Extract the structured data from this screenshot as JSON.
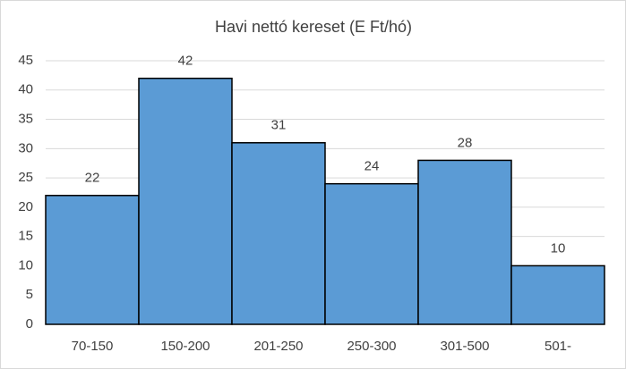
{
  "chart_data": {
    "type": "bar",
    "title": "Havi nettó kereset (E Ft/hó)",
    "categories": [
      "70-150",
      "150-200",
      "201-250",
      "250-300",
      "301-500",
      "501-"
    ],
    "values": [
      22,
      42,
      31,
      24,
      28,
      10
    ],
    "color": "#5b9bd5",
    "ylim": [
      0,
      45
    ],
    "yticks": [
      0,
      5,
      10,
      15,
      20,
      25,
      30,
      35,
      40,
      45
    ],
    "grid": true
  }
}
